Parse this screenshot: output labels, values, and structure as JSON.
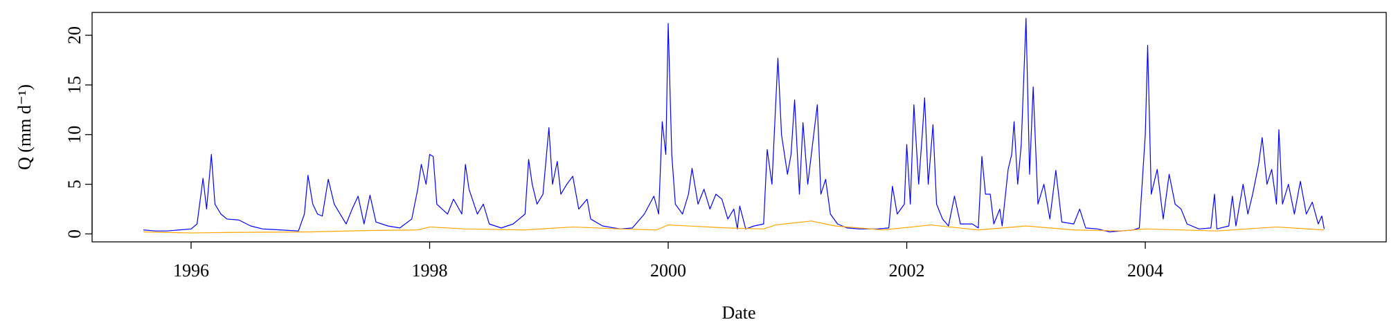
{
  "chart_data": {
    "type": "line",
    "xlabel": "Date",
    "ylabel": "Q (mm d⁻¹)",
    "xlim": [
      1995.17,
      2006.02
    ],
    "xticks": [
      1996,
      1998,
      2000,
      2002,
      2004
    ],
    "ylim": [
      -0.8,
      22.3
    ],
    "yticks": [
      0,
      5,
      10,
      15,
      20
    ],
    "series": [
      {
        "color": "#0000ff",
        "x": [
          1995.6,
          1995.7,
          1995.8,
          1995.9,
          1996.0,
          1996.05,
          1996.1,
          1996.13,
          1996.17,
          1996.2,
          1996.25,
          1996.3,
          1996.4,
          1996.5,
          1996.6,
          1996.75,
          1996.9,
          1996.95,
          1996.98,
          1997.02,
          1997.06,
          1997.1,
          1997.15,
          1997.2,
          1997.3,
          1997.35,
          1997.4,
          1997.45,
          1997.5,
          1997.55,
          1997.65,
          1997.75,
          1997.85,
          1997.9,
          1997.93,
          1997.97,
          1998.0,
          1998.03,
          1998.06,
          1998.15,
          1998.2,
          1998.27,
          1998.3,
          1998.33,
          1998.4,
          1998.45,
          1998.5,
          1998.6,
          1998.7,
          1998.75,
          1998.8,
          1998.83,
          1998.86,
          1998.9,
          1998.95,
          1999.0,
          1999.03,
          1999.07,
          1999.1,
          1999.15,
          1999.2,
          1999.25,
          1999.32,
          1999.35,
          1999.45,
          1999.6,
          1999.7,
          1999.8,
          1999.88,
          1999.92,
          1999.95,
          1999.98,
          2000.0,
          2000.03,
          2000.06,
          2000.12,
          2000.17,
          2000.2,
          2000.25,
          2000.3,
          2000.35,
          2000.4,
          2000.45,
          2000.5,
          2000.55,
          2000.58,
          2000.6,
          2000.65,
          2000.72,
          2000.8,
          2000.83,
          2000.87,
          2000.9,
          2000.92,
          2000.95,
          2001.0,
          2001.03,
          2001.06,
          2001.1,
          2001.13,
          2001.17,
          2001.2,
          2001.25,
          2001.28,
          2001.32,
          2001.36,
          2001.42,
          2001.5,
          2001.6,
          2001.75,
          2001.85,
          2001.88,
          2001.92,
          2001.98,
          2002.0,
          2002.03,
          2002.06,
          2002.1,
          2002.13,
          2002.15,
          2002.18,
          2002.22,
          2002.25,
          2002.3,
          2002.35,
          2002.4,
          2002.45,
          2002.55,
          2002.6,
          2002.63,
          2002.66,
          2002.7,
          2002.73,
          2002.78,
          2002.8,
          2002.85,
          2002.88,
          2002.9,
          2002.93,
          2002.96,
          2003.0,
          2003.03,
          2003.06,
          2003.1,
          2003.15,
          2003.2,
          2003.25,
          2003.3,
          2003.4,
          2003.45,
          2003.5,
          2003.6,
          2003.7,
          2003.8,
          2003.9,
          2003.95,
          2004.0,
          2004.02,
          2004.05,
          2004.1,
          2004.15,
          2004.2,
          2004.25,
          2004.3,
          2004.35,
          2004.45,
          2004.55,
          2004.58,
          2004.6,
          2004.7,
          2004.73,
          2004.76,
          2004.82,
          2004.86,
          2004.9,
          2004.95,
          2004.98,
          2005.02,
          2005.06,
          2005.1,
          2005.12,
          2005.15,
          2005.2,
          2005.25,
          2005.3,
          2005.35,
          2005.4,
          2005.45,
          2005.48,
          2005.5
        ],
        "values": [
          0.4,
          0.3,
          0.3,
          0.4,
          0.5,
          1.0,
          5.6,
          2.5,
          8.0,
          3.0,
          2.0,
          1.5,
          1.4,
          0.8,
          0.5,
          0.4,
          0.3,
          2.0,
          5.9,
          3.0,
          2.0,
          1.8,
          5.5,
          3.0,
          1.0,
          2.5,
          3.8,
          1.0,
          3.9,
          1.2,
          0.8,
          0.6,
          1.5,
          4.5,
          7.0,
          5.0,
          8.0,
          7.8,
          3.0,
          2.0,
          3.5,
          2.0,
          7.0,
          4.5,
          2.0,
          3.0,
          1.0,
          0.6,
          1.0,
          1.5,
          2.0,
          7.5,
          5.0,
          3.0,
          4.0,
          10.7,
          5.0,
          7.3,
          4.0,
          5.0,
          5.8,
          2.5,
          3.5,
          1.5,
          0.8,
          0.5,
          0.6,
          2.0,
          3.8,
          2.0,
          11.3,
          8.0,
          21.2,
          8.0,
          3.0,
          2.0,
          4.0,
          6.6,
          3.0,
          4.5,
          2.5,
          4.0,
          3.5,
          1.5,
          2.5,
          0.5,
          2.8,
          0.5,
          0.8,
          1.0,
          8.5,
          5.0,
          12.8,
          17.7,
          10.0,
          6.0,
          8.0,
          13.5,
          4.0,
          11.2,
          5.0,
          8.0,
          13.0,
          4.0,
          5.5,
          2.0,
          1.0,
          0.6,
          0.5,
          0.5,
          0.6,
          4.8,
          2.0,
          3.0,
          9.0,
          3.0,
          13.0,
          5.0,
          10.0,
          13.7,
          5.0,
          11.0,
          3.0,
          1.5,
          0.8,
          3.8,
          1.0,
          1.0,
          0.6,
          7.8,
          4.0,
          4.0,
          1.0,
          2.5,
          0.8,
          6.5,
          8.0,
          11.3,
          5.0,
          9.0,
          21.7,
          6.0,
          14.8,
          3.0,
          5.0,
          1.5,
          6.4,
          1.2,
          1.0,
          2.5,
          0.6,
          0.5,
          0.2,
          0.3,
          0.4,
          0.6,
          10.0,
          19.0,
          4.0,
          6.5,
          1.5,
          6.0,
          3.0,
          2.5,
          1.0,
          0.5,
          0.6,
          4.0,
          0.5,
          0.8,
          3.8,
          0.8,
          5.0,
          2.0,
          4.0,
          7.0,
          9.7,
          5.0,
          6.5,
          3.0,
          10.5,
          3.0,
          5.0,
          2.0,
          5.3,
          2.0,
          3.2,
          1.0,
          1.8,
          0.5
        ]
      },
      {
        "color": "#ffa500",
        "x": [
          1995.6,
          1996.0,
          1996.3,
          1997.0,
          1997.5,
          1997.9,
          1998.0,
          1998.3,
          1998.8,
          1999.2,
          1999.6,
          1999.9,
          2000.0,
          2000.5,
          2000.8,
          2000.9,
          2001.2,
          2001.4,
          2001.8,
          2002.2,
          2002.6,
          2003.0,
          2003.4,
          2003.8,
          2004.0,
          2004.6,
          2005.1,
          2005.5
        ],
        "values": [
          0.2,
          0.1,
          0.15,
          0.2,
          0.35,
          0.4,
          0.7,
          0.5,
          0.4,
          0.7,
          0.5,
          0.4,
          0.9,
          0.6,
          0.5,
          0.9,
          1.3,
          0.8,
          0.4,
          0.9,
          0.4,
          0.8,
          0.4,
          0.3,
          0.5,
          0.3,
          0.7,
          0.4
        ]
      }
    ]
  }
}
